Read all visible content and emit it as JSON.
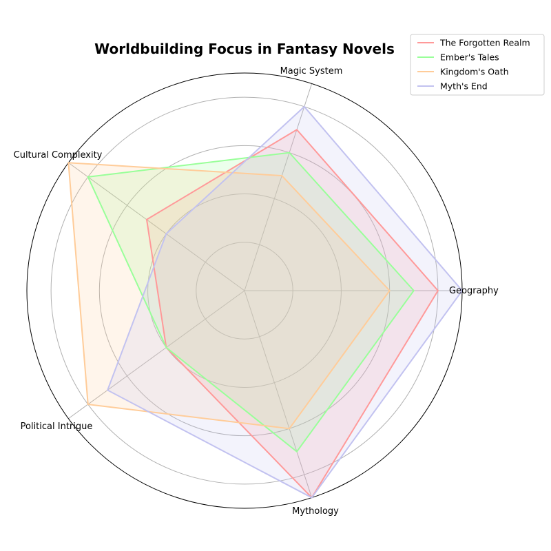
{
  "chart_data": {
    "type": "radar",
    "title": "Worldbuilding Focus in Fantasy Novels",
    "categories": [
      "Geography",
      "Magic System",
      "Cultural Complexity",
      "Political Intrigue",
      "Mythology"
    ],
    "rmax": 9,
    "grid": true,
    "legend_position": "top-right",
    "series": [
      {
        "name": "The Forgotten Realm",
        "color": "#ff9999",
        "values": [
          8,
          7,
          5,
          4,
          9
        ]
      },
      {
        "name": "Ember's Tales",
        "color": "#99ff99",
        "values": [
          7,
          6,
          8,
          4,
          7
        ]
      },
      {
        "name": "Kingdom's Oath",
        "color": "#ffcc99",
        "values": [
          6,
          5,
          9,
          8,
          6
        ]
      },
      {
        "name": "Myth's End",
        "color": "#c2c2f0",
        "values": [
          9,
          8,
          4,
          7,
          9
        ]
      }
    ]
  }
}
